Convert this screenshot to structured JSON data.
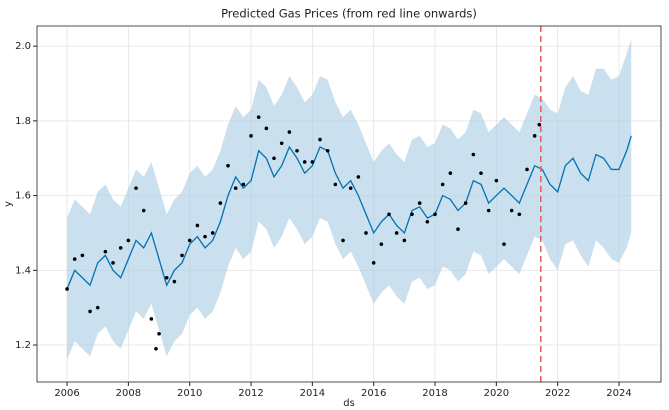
{
  "chart_data": {
    "type": "forecast",
    "title": "Predicted Gas Prices (from red line onwards)",
    "x_label": "ds",
    "y_label": "y",
    "xlim": [
      2005.02,
      2025.37
    ],
    "ylim": [
      1.101,
      2.054
    ],
    "xticks": [
      2006,
      2008,
      2010,
      2012,
      2014,
      2016,
      2018,
      2020,
      2022,
      2024
    ],
    "yticks": [
      1.2,
      1.4,
      1.6,
      1.8,
      {
        "value": 2,
        "label": "2.0"
      }
    ],
    "grid": true,
    "forecast": {
      "color": "#0072b2",
      "band_color": "#a9cce3",
      "x": [
        2006,
        2006.25,
        2006.5,
        2006.75,
        2007,
        2007.25,
        2007.5,
        2007.75,
        2008,
        2008.25,
        2008.5,
        2008.75,
        2009,
        2009.25,
        2009.5,
        2009.75,
        2010,
        2010.25,
        2010.5,
        2010.75,
        2011,
        2011.25,
        2011.5,
        2011.75,
        2012,
        2012.25,
        2012.5,
        2012.75,
        2013,
        2013.25,
        2013.5,
        2013.75,
        2014,
        2014.25,
        2014.5,
        2014.75,
        2015,
        2015.25,
        2015.5,
        2015.75,
        2016,
        2016.25,
        2016.5,
        2016.75,
        2017,
        2017.25,
        2017.5,
        2017.75,
        2018,
        2018.25,
        2018.5,
        2018.75,
        2019,
        2019.25,
        2019.5,
        2019.75,
        2020,
        2020.25,
        2020.5,
        2020.75,
        2021,
        2021.25,
        2021.5,
        2021.75,
        2022,
        2022.25,
        2022.5,
        2022.75,
        2023,
        2023.25,
        2023.5,
        2023.75,
        2024,
        2024.25,
        2024.4
      ],
      "values": [
        1.35,
        1.4,
        1.38,
        1.36,
        1.42,
        1.44,
        1.4,
        1.38,
        1.43,
        1.48,
        1.46,
        1.5,
        1.43,
        1.36,
        1.4,
        1.42,
        1.47,
        1.49,
        1.46,
        1.48,
        1.53,
        1.6,
        1.65,
        1.62,
        1.64,
        1.72,
        1.7,
        1.65,
        1.68,
        1.73,
        1.7,
        1.66,
        1.68,
        1.73,
        1.72,
        1.66,
        1.62,
        1.64,
        1.6,
        1.55,
        1.5,
        1.53,
        1.55,
        1.52,
        1.5,
        1.56,
        1.57,
        1.54,
        1.55,
        1.6,
        1.59,
        1.56,
        1.58,
        1.64,
        1.63,
        1.58,
        1.6,
        1.62,
        1.6,
        1.58,
        1.63,
        1.68,
        1.67,
        1.63,
        1.61,
        1.68,
        1.7,
        1.66,
        1.64,
        1.71,
        1.7,
        1.67,
        1.67,
        1.72,
        1.76
      ],
      "upper": [
        1.54,
        1.59,
        1.57,
        1.55,
        1.61,
        1.63,
        1.59,
        1.57,
        1.62,
        1.67,
        1.65,
        1.69,
        1.62,
        1.55,
        1.59,
        1.61,
        1.66,
        1.68,
        1.65,
        1.67,
        1.72,
        1.79,
        1.84,
        1.81,
        1.83,
        1.91,
        1.89,
        1.84,
        1.87,
        1.92,
        1.89,
        1.85,
        1.87,
        1.92,
        1.91,
        1.85,
        1.81,
        1.83,
        1.79,
        1.74,
        1.69,
        1.72,
        1.74,
        1.71,
        1.69,
        1.75,
        1.76,
        1.73,
        1.74,
        1.79,
        1.78,
        1.75,
        1.77,
        1.83,
        1.82,
        1.77,
        1.79,
        1.81,
        1.79,
        1.77,
        1.82,
        1.87,
        1.86,
        1.83,
        1.82,
        1.89,
        1.92,
        1.88,
        1.87,
        1.94,
        1.94,
        1.91,
        1.92,
        1.98,
        2.02
      ],
      "lower": [
        1.16,
        1.21,
        1.19,
        1.17,
        1.23,
        1.25,
        1.21,
        1.19,
        1.24,
        1.29,
        1.27,
        1.31,
        1.24,
        1.17,
        1.21,
        1.23,
        1.28,
        1.3,
        1.27,
        1.29,
        1.34,
        1.41,
        1.46,
        1.43,
        1.45,
        1.53,
        1.51,
        1.46,
        1.49,
        1.54,
        1.51,
        1.47,
        1.49,
        1.54,
        1.53,
        1.47,
        1.43,
        1.45,
        1.41,
        1.36,
        1.31,
        1.34,
        1.36,
        1.33,
        1.31,
        1.37,
        1.38,
        1.35,
        1.36,
        1.41,
        1.4,
        1.37,
        1.39,
        1.45,
        1.44,
        1.39,
        1.41,
        1.43,
        1.41,
        1.39,
        1.44,
        1.49,
        1.48,
        1.43,
        1.4,
        1.47,
        1.48,
        1.44,
        1.41,
        1.48,
        1.46,
        1.43,
        1.42,
        1.46,
        1.5
      ]
    },
    "observed": {
      "color": "#000000",
      "x": [
        2006,
        2006.25,
        2006.5,
        2006.75,
        2007,
        2007.25,
        2007.5,
        2007.75,
        2008,
        2008.25,
        2008.5,
        2008.75,
        2008.9,
        2009,
        2009.25,
        2009.5,
        2009.75,
        2010,
        2010.25,
        2010.5,
        2010.75,
        2011,
        2011.25,
        2011.5,
        2011.75,
        2012,
        2012.25,
        2012.5,
        2012.75,
        2013,
        2013.25,
        2013.5,
        2013.75,
        2014,
        2014.25,
        2014.5,
        2014.75,
        2015,
        2015.25,
        2015.5,
        2015.75,
        2016,
        2016.25,
        2016.5,
        2016.75,
        2017,
        2017.25,
        2017.5,
        2017.75,
        2018,
        2018.25,
        2018.5,
        2018.75,
        2019,
        2019.25,
        2019.5,
        2019.75,
        2020,
        2020.25,
        2020.5,
        2020.75,
        2021,
        2021.25,
        2021.4
      ],
      "values": [
        1.35,
        1.43,
        1.44,
        1.29,
        1.3,
        1.45,
        1.42,
        1.46,
        1.48,
        1.62,
        1.56,
        1.27,
        1.19,
        1.23,
        1.38,
        1.37,
        1.44,
        1.48,
        1.52,
        1.49,
        1.5,
        1.58,
        1.68,
        1.62,
        1.63,
        1.76,
        1.81,
        1.78,
        1.7,
        1.74,
        1.77,
        1.72,
        1.69,
        1.69,
        1.75,
        1.72,
        1.63,
        1.48,
        1.62,
        1.65,
        1.5,
        1.42,
        1.47,
        1.55,
        1.5,
        1.48,
        1.55,
        1.58,
        1.53,
        1.55,
        1.63,
        1.66,
        1.51,
        1.58,
        1.71,
        1.66,
        1.56,
        1.64,
        1.47,
        1.56,
        1.55,
        1.67,
        1.76,
        1.79
      ]
    },
    "cutoff": {
      "x": 2021.45,
      "color": "#e8595a"
    }
  }
}
